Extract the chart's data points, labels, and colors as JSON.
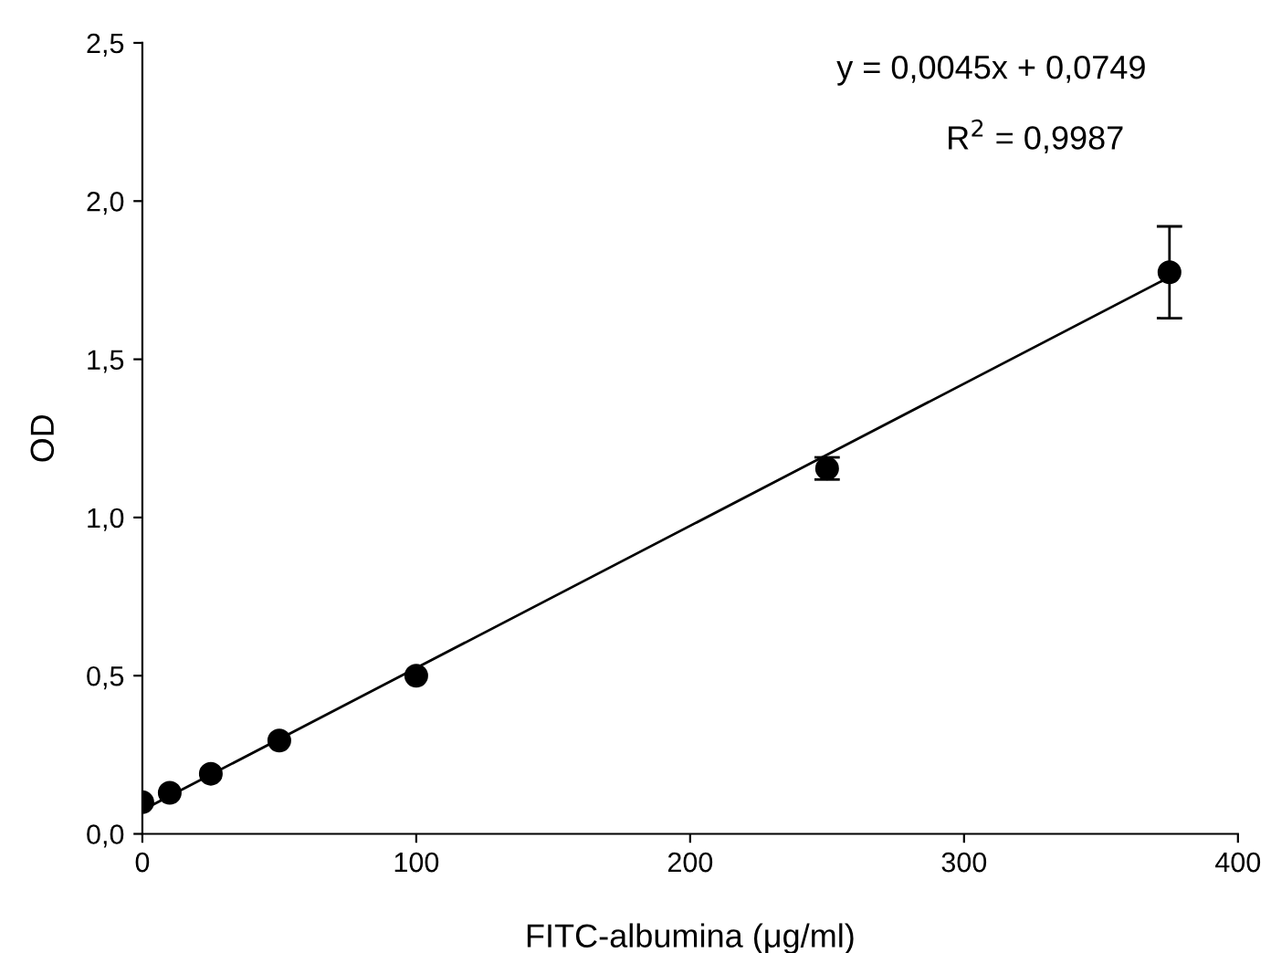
{
  "chart_data": {
    "type": "scatter",
    "xlabel": "FITC-albumina (μg/ml)",
    "ylabel": "OD",
    "xlim": [
      0,
      400
    ],
    "ylim": [
      0,
      2.5
    ],
    "xticks": [
      0,
      100,
      200,
      300,
      400
    ],
    "yticks": [
      {
        "value": 0,
        "label": "0,0"
      },
      {
        "value": 0.5,
        "label": "0,5"
      },
      {
        "value": 1.0,
        "label": "1,0"
      },
      {
        "value": 1.5,
        "label": "1,5"
      },
      {
        "value": 2.0,
        "label": "2,0"
      },
      {
        "value": 2.5,
        "label": "2,5"
      }
    ],
    "grid": false,
    "series": [
      {
        "color": "#000000",
        "marker": "circle",
        "x": [
          0,
          10,
          25,
          50,
          100,
          250,
          375
        ],
        "values": [
          0.1,
          0.13,
          0.19,
          0.295,
          0.5,
          1.155,
          1.775
        ],
        "errors": [
          null,
          null,
          null,
          null,
          null,
          0.035,
          0.145
        ]
      },
      {
        "type": "line",
        "color": "#000000",
        "marker": "none",
        "line_style": "solid",
        "x": [
          0,
          375
        ],
        "values": [
          0.075,
          1.76
        ]
      }
    ],
    "annotations": [
      "y = 0,0045x + 0,0749",
      "R$^{2}$ = 0,9987"
    ]
  }
}
